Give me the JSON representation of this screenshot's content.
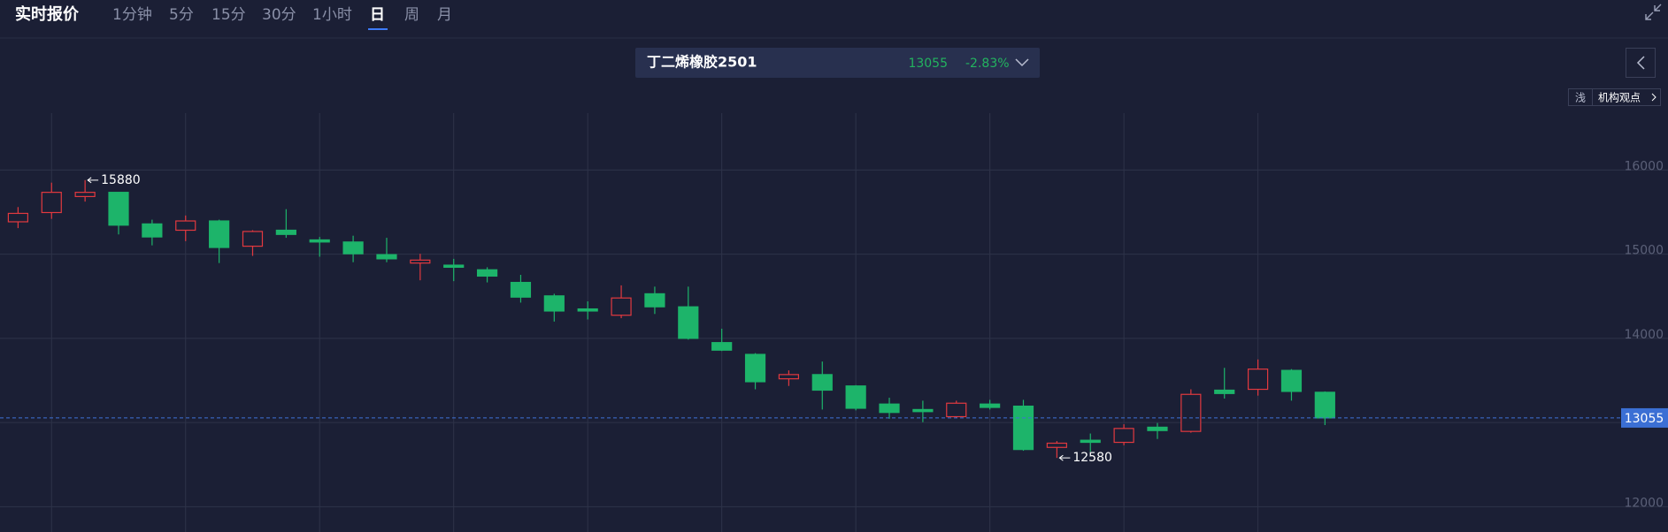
{
  "header": {
    "title": "实时报价",
    "tabs": [
      "1分钟",
      "5分",
      "15分",
      "30分",
      "1小时",
      "日",
      "周",
      "月"
    ],
    "active_tab": 5
  },
  "ticker": {
    "name": "丁二烯橡胶2501",
    "price": 13055,
    "change": "-2.83%"
  },
  "buttons": {
    "theme": "浅",
    "views": "机构观点"
  },
  "chart_data": {
    "type": "candlestick",
    "open": [
      15385,
      15495,
      15685,
      15735,
      15360,
      15285,
      15395,
      15095,
      15285,
      15170,
      15145,
      14995,
      14895,
      14870,
      14815,
      14665,
      14505,
      14350,
      14275,
      14530,
      14375,
      13950,
      13810,
      13520,
      13570,
      13435,
      13220,
      13155,
      13070,
      13220,
      13195,
      12705,
      12790,
      12765,
      12945,
      12895,
      13385,
      13395,
      13620,
      13360
    ],
    "high": [
      15560,
      15850,
      15880,
      15735,
      15410,
      15460,
      15410,
      15285,
      15535,
      15205,
      15220,
      15195,
      15005,
      14945,
      14845,
      14755,
      14530,
      14440,
      14630,
      14615,
      14615,
      14115,
      13825,
      13620,
      13725,
      13445,
      13295,
      13260,
      13260,
      13270,
      13270,
      12780,
      12870,
      12980,
      12995,
      13395,
      13650,
      13750,
      13635,
      13370
    ],
    "low": [
      15310,
      15420,
      15625,
      15235,
      15105,
      15155,
      14895,
      14980,
      15195,
      14970,
      14905,
      14905,
      14690,
      14680,
      14665,
      14425,
      14200,
      14225,
      14240,
      14290,
      13985,
      13850,
      13395,
      13435,
      13155,
      13145,
      13045,
      13005,
      13055,
      13155,
      12665,
      12580,
      12655,
      12730,
      12805,
      12880,
      13285,
      13320,
      13260,
      12970
    ],
    "close": [
      15485,
      15735,
      15735,
      15345,
      15205,
      15395,
      15080,
      15270,
      15235,
      15145,
      15005,
      14945,
      14930,
      14845,
      14740,
      14490,
      14325,
      14325,
      14480,
      14375,
      14000,
      13860,
      13485,
      13570,
      13385,
      13170,
      13120,
      13130,
      13230,
      13180,
      12680,
      12755,
      12765,
      12930,
      12905,
      13335,
      13345,
      13635,
      13370,
      13055
    ],
    "up_color": "#e2393f",
    "down_color": "#1db46a",
    "ylim": [
      11700,
      16760
    ],
    "yticks": [
      12000,
      13000,
      14000,
      15000,
      16000
    ],
    "grid": true,
    "last_price": 13055
  }
}
